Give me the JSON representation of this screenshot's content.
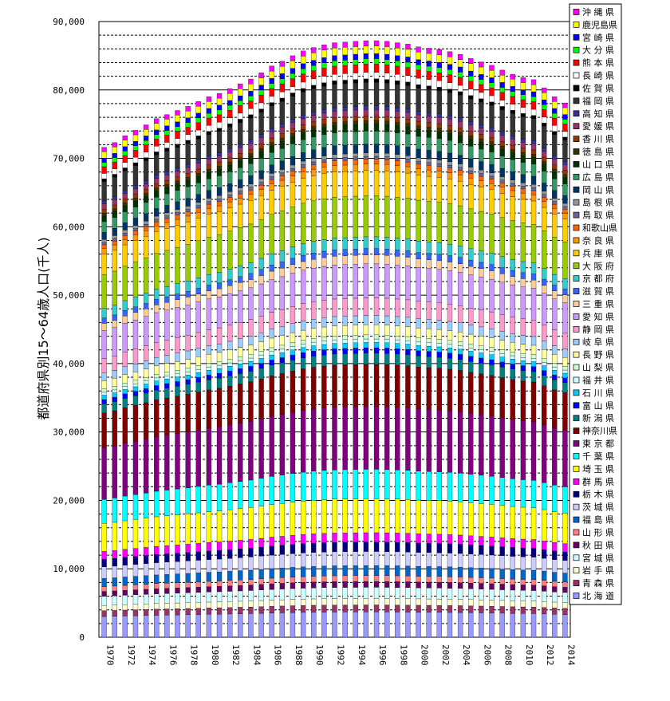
{
  "chart_data": {
    "type": "bar",
    "stacked": true,
    "ylabel": "都道府県別15～64歳人口(千人)",
    "ylim": [
      0,
      90000
    ],
    "y_ticks": [
      "0",
      "10,000",
      "20,000",
      "30,000",
      "40,000",
      "50,000",
      "60,000",
      "70,000",
      "80,000",
      "90,000"
    ],
    "x_tick_labels": [
      "1970",
      "1972",
      "1974",
      "1976",
      "1978",
      "1980",
      "1982",
      "1984",
      "1986",
      "1988",
      "1990",
      "1992",
      "1994",
      "1996",
      "1998",
      "2000",
      "2002",
      "2004",
      "2006",
      "2008",
      "2010",
      "2012",
      "2014"
    ],
    "categories": [
      "1970",
      "1971",
      "1972",
      "1973",
      "1974",
      "1975",
      "1976",
      "1977",
      "1978",
      "1979",
      "1980",
      "1981",
      "1982",
      "1983",
      "1984",
      "1985",
      "1986",
      "1987",
      "1988",
      "1989",
      "1990",
      "1991",
      "1992",
      "1993",
      "1994",
      "1995",
      "1996",
      "1997",
      "1998",
      "1999",
      "2000",
      "2001",
      "2002",
      "2003",
      "2004",
      "2005",
      "2006",
      "2007",
      "2008",
      "2009",
      "2010",
      "2011",
      "2012",
      "2013",
      "2014"
    ],
    "totals": [
      71600,
      72300,
      73300,
      74100,
      74900,
      75800,
      76400,
      77000,
      77600,
      78300,
      79000,
      79500,
      80200,
      80900,
      81600,
      82500,
      83500,
      84200,
      85000,
      85700,
      86200,
      86600,
      86900,
      87000,
      87100,
      87200,
      87200,
      87100,
      86900,
      86700,
      86300,
      86100,
      85900,
      85600,
      85200,
      84600,
      84100,
      83600,
      82900,
      82300,
      81800,
      81500,
      80300,
      79000,
      78100
    ],
    "grid": "major solid at 10,000 / minor dashed at 2,000",
    "legend_placement": "right",
    "series": [
      {
        "name": "北 海 道",
        "color": "#9999ff",
        "share": 0.043
      },
      {
        "name": "青 森 県",
        "color": "#993366",
        "share": 0.012
      },
      {
        "name": "岩 手 県",
        "color": "#ffffcc",
        "share": 0.011
      },
      {
        "name": "宮 城 県",
        "color": "#ccffff",
        "share": 0.019
      },
      {
        "name": "秋 田 県",
        "color": "#660066",
        "share": 0.01
      },
      {
        "name": "山 形 県",
        "color": "#ff8080",
        "share": 0.01
      },
      {
        "name": "福 島 県",
        "color": "#0066cc",
        "share": 0.017
      },
      {
        "name": "茨 城 県",
        "color": "#ccccff",
        "share": 0.024
      },
      {
        "name": "栃 木 県",
        "color": "#000080",
        "share": 0.016
      },
      {
        "name": "群 馬 県",
        "color": "#ff00ff",
        "share": 0.016
      },
      {
        "name": "埼 玉 県",
        "color": "#ffff00",
        "share": 0.058
      },
      {
        "name": "千 葉 県",
        "color": "#00ffff",
        "share": 0.05
      },
      {
        "name": "東 京 都",
        "color": "#800080",
        "share": 0.107
      },
      {
        "name": "神奈川県",
        "color": "#800000",
        "share": 0.072
      },
      {
        "name": "新 潟 県",
        "color": "#008080",
        "share": 0.019
      },
      {
        "name": "富 山 県",
        "color": "#0000ff",
        "share": 0.009
      },
      {
        "name": "石 川 県",
        "color": "#00ccff",
        "share": 0.009
      },
      {
        "name": "福 井 県",
        "color": "#ccffff",
        "share": 0.006
      },
      {
        "name": "山 梨 県",
        "color": "#ccffcc",
        "share": 0.007
      },
      {
        "name": "長 野 県",
        "color": "#ffff99",
        "share": 0.017
      },
      {
        "name": "岐 阜 県",
        "color": "#99ccff",
        "share": 0.016
      },
      {
        "name": "静 岡 県",
        "color": "#ff99cc",
        "share": 0.03
      },
      {
        "name": "愛 知 県",
        "color": "#cc99ff",
        "share": 0.058
      },
      {
        "name": "三 重 県",
        "color": "#ffcc99",
        "share": 0.015
      },
      {
        "name": "滋 賀 県",
        "color": "#3366ff",
        "share": 0.011
      },
      {
        "name": "京 都 府",
        "color": "#33cccc",
        "share": 0.02
      },
      {
        "name": "大 阪 府",
        "color": "#99cc00",
        "share": 0.07
      },
      {
        "name": "兵 庫 県",
        "color": "#ffcc00",
        "share": 0.043
      },
      {
        "name": "奈 良 県",
        "color": "#ff9900",
        "share": 0.011
      },
      {
        "name": "和歌山県",
        "color": "#ff6600",
        "share": 0.008
      },
      {
        "name": "鳥 取 県",
        "color": "#666699",
        "share": 0.005
      },
      {
        "name": "島 根 県",
        "color": "#969696",
        "share": 0.006
      },
      {
        "name": "岡 山 県",
        "color": "#003366",
        "share": 0.015
      },
      {
        "name": "広 島 県",
        "color": "#339966",
        "share": 0.022
      },
      {
        "name": "山 口 県",
        "color": "#003300",
        "share": 0.012
      },
      {
        "name": "徳 島 県",
        "color": "#333300",
        "share": 0.006
      },
      {
        "name": "香 川 県",
        "color": "#993300",
        "share": 0.008
      },
      {
        "name": "愛 媛 県",
        "color": "#993366",
        "share": 0.011
      },
      {
        "name": "高 知 県",
        "color": "#333399",
        "share": 0.006
      },
      {
        "name": "福 岡 県",
        "color": "#333333",
        "share": 0.04
      },
      {
        "name": "佐 賀 県",
        "color": "#000000",
        "share": 0.006
      },
      {
        "name": "長 崎 県",
        "color": "#ffffff",
        "share": 0.011
      },
      {
        "name": "熊 本 県",
        "color": "#ff0000",
        "share": 0.014
      },
      {
        "name": "大 分 県",
        "color": "#00ff00",
        "share": 0.009
      },
      {
        "name": "宮 崎 県",
        "color": "#0000ff",
        "share": 0.009
      },
      {
        "name": "鹿児島県",
        "color": "#ffff00",
        "share": 0.013
      },
      {
        "name": "沖 縄 県",
        "color": "#ff00ff",
        "share": 0.009
      }
    ]
  }
}
